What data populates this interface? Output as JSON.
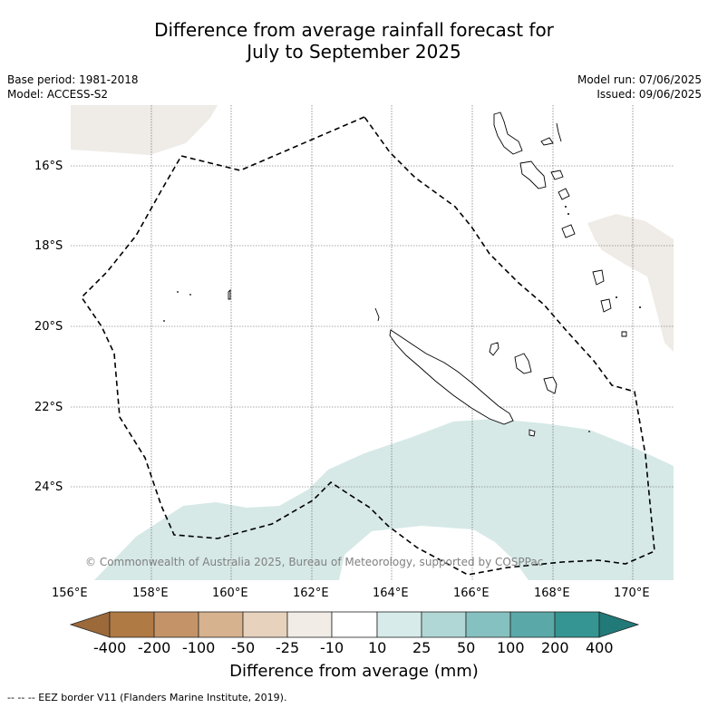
{
  "title_line1": "Difference from average rainfall forecast for",
  "title_line2": "July to September 2025",
  "base_period": "Base period: 1981-2018",
  "model": "Model: ACCESS-S2",
  "model_run": "Model run: 07/06/2025",
  "issued": "Issued: 09/06/2025",
  "lat_labels": [
    "16°S",
    "18°S",
    "20°S",
    "22°S",
    "24°S"
  ],
  "lon_labels": [
    "156°E",
    "158°E",
    "160°E",
    "162°E",
    "164°E",
    "166°E",
    "168°E",
    "170°E"
  ],
  "copyright": "© Commonwealth of Australia 2025, Bureau of Meteorology, supported by COSPPac",
  "colorbar": {
    "labels": [
      "-400",
      "-200",
      "-100",
      "-50",
      "-25",
      "-10",
      "10",
      "25",
      "50",
      "100",
      "200",
      "400"
    ],
    "colors": [
      "#9c6a3a",
      "#b07a44",
      "#c49468",
      "#d6b28f",
      "#e6d2bd",
      "#f1ece6",
      "#ffffff",
      "#d7ebea",
      "#b0d7d6",
      "#85c1c0",
      "#5aa9a8",
      "#349592",
      "#217a78"
    ],
    "title": "Difference from average (mm)"
  },
  "map_colors": {
    "below_light": "#efebe6",
    "above_light": "#d6e9e7"
  },
  "footnote": "--  --  -- EEZ border V11 (Flanders Marine Institute, 2019)."
}
